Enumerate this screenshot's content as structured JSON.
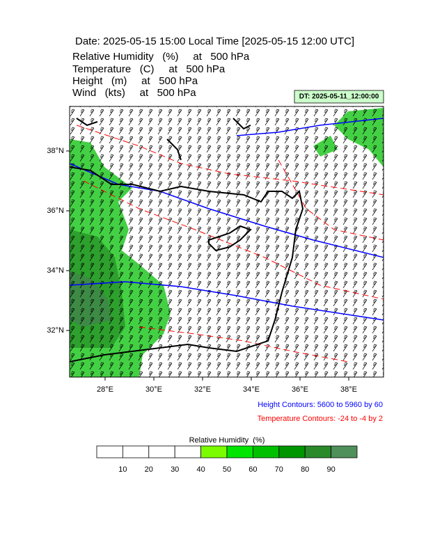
{
  "header": {
    "title": "Date: 2025-05-15  15:00 Local Time [2025-05-15  12:00 UTC]",
    "lines": [
      "Relative Humidity   (%)     at   500 hPa",
      "Temperature   (C)     at   500 hPa",
      "Height   (m)     at   500 hPa",
      "Wind   (kts)     at   500 hPa"
    ]
  },
  "dt_label": "DT: 2025-05-11_12:00:00",
  "map": {
    "lat_labels": [
      "38°N",
      "36°N",
      "34°N",
      "32°N"
    ],
    "lon_labels": [
      "28°E",
      "30°E",
      "32°E",
      "34°E",
      "36°E",
      "38°E"
    ]
  },
  "legend": {
    "height": "Height Contours: 5600 to 5960 by 60",
    "temperature": "Temperature Contours: -24 to -4 by 2"
  },
  "colorbar": {
    "title": "Relative Humidity  (%)",
    "labels": [
      10,
      20,
      30,
      40,
      50,
      60,
      70,
      80,
      90
    ],
    "colors": [
      "#ffffff",
      "#ffffff",
      "#ffffff",
      "#ffffff",
      "#7cfc00",
      "#00e600",
      "#00c000",
      "#009600",
      "#2a8a2a",
      "#4f8f5a"
    ]
  }
}
